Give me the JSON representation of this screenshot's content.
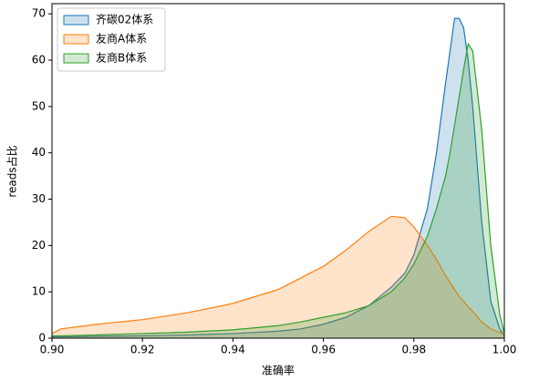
{
  "chart_data": {
    "type": "area",
    "x_label": "准确率",
    "y_label": "reads占比",
    "x": [
      0.9,
      0.902,
      0.91,
      0.92,
      0.93,
      0.94,
      0.95,
      0.955,
      0.96,
      0.965,
      0.97,
      0.975,
      0.978,
      0.98,
      0.983,
      0.985,
      0.987,
      0.988,
      0.989,
      0.99,
      0.991,
      0.992,
      0.993,
      0.995,
      0.997,
      0.999,
      1.0
    ],
    "series": [
      {
        "name": "齐碳02体系",
        "color": "#1f77b4",
        "values": [
          0.3,
          0.3,
          0.4,
          0.5,
          0.7,
          1,
          1.5,
          2,
          3,
          4.5,
          7,
          11,
          14,
          18,
          28,
          40,
          55,
          62,
          69,
          69,
          67,
          60,
          50,
          25,
          8,
          2,
          0.5
        ]
      },
      {
        "name": "友商A体系",
        "color": "#ff7f0e",
        "values": [
          1,
          2,
          3,
          4,
          5.5,
          7.5,
          10.5,
          13,
          15.5,
          19,
          23,
          26.3,
          26,
          24,
          20,
          17,
          13.5,
          12,
          10.5,
          9,
          8,
          6.8,
          5.8,
          3.5,
          2,
          1.2,
          0.8
        ]
      },
      {
        "name": "友商B体系",
        "color": "#2ca02c",
        "values": [
          0.5,
          0.5,
          0.7,
          1,
          1.3,
          1.8,
          2.7,
          3.5,
          4.5,
          5.5,
          7,
          10,
          13,
          16,
          22,
          28,
          35,
          40,
          46,
          52,
          58,
          63.5,
          62,
          45,
          20,
          5,
          1
        ]
      }
    ],
    "xlim": [
      0.9,
      1.0
    ],
    "xticks": [
      {
        "value": 0.9,
        "label": "0.90"
      },
      {
        "value": 0.92,
        "label": "0.92"
      },
      {
        "value": 0.94,
        "label": "0.94"
      },
      {
        "value": 0.96,
        "label": "0.96"
      },
      {
        "value": 0.98,
        "label": "0.98"
      },
      {
        "value": 1.0,
        "label": "1.00"
      }
    ],
    "ylim": [
      0,
      72.2
    ],
    "yticks": [
      0,
      10,
      20,
      30,
      40,
      50,
      60,
      70
    ],
    "legend": "upper left"
  }
}
